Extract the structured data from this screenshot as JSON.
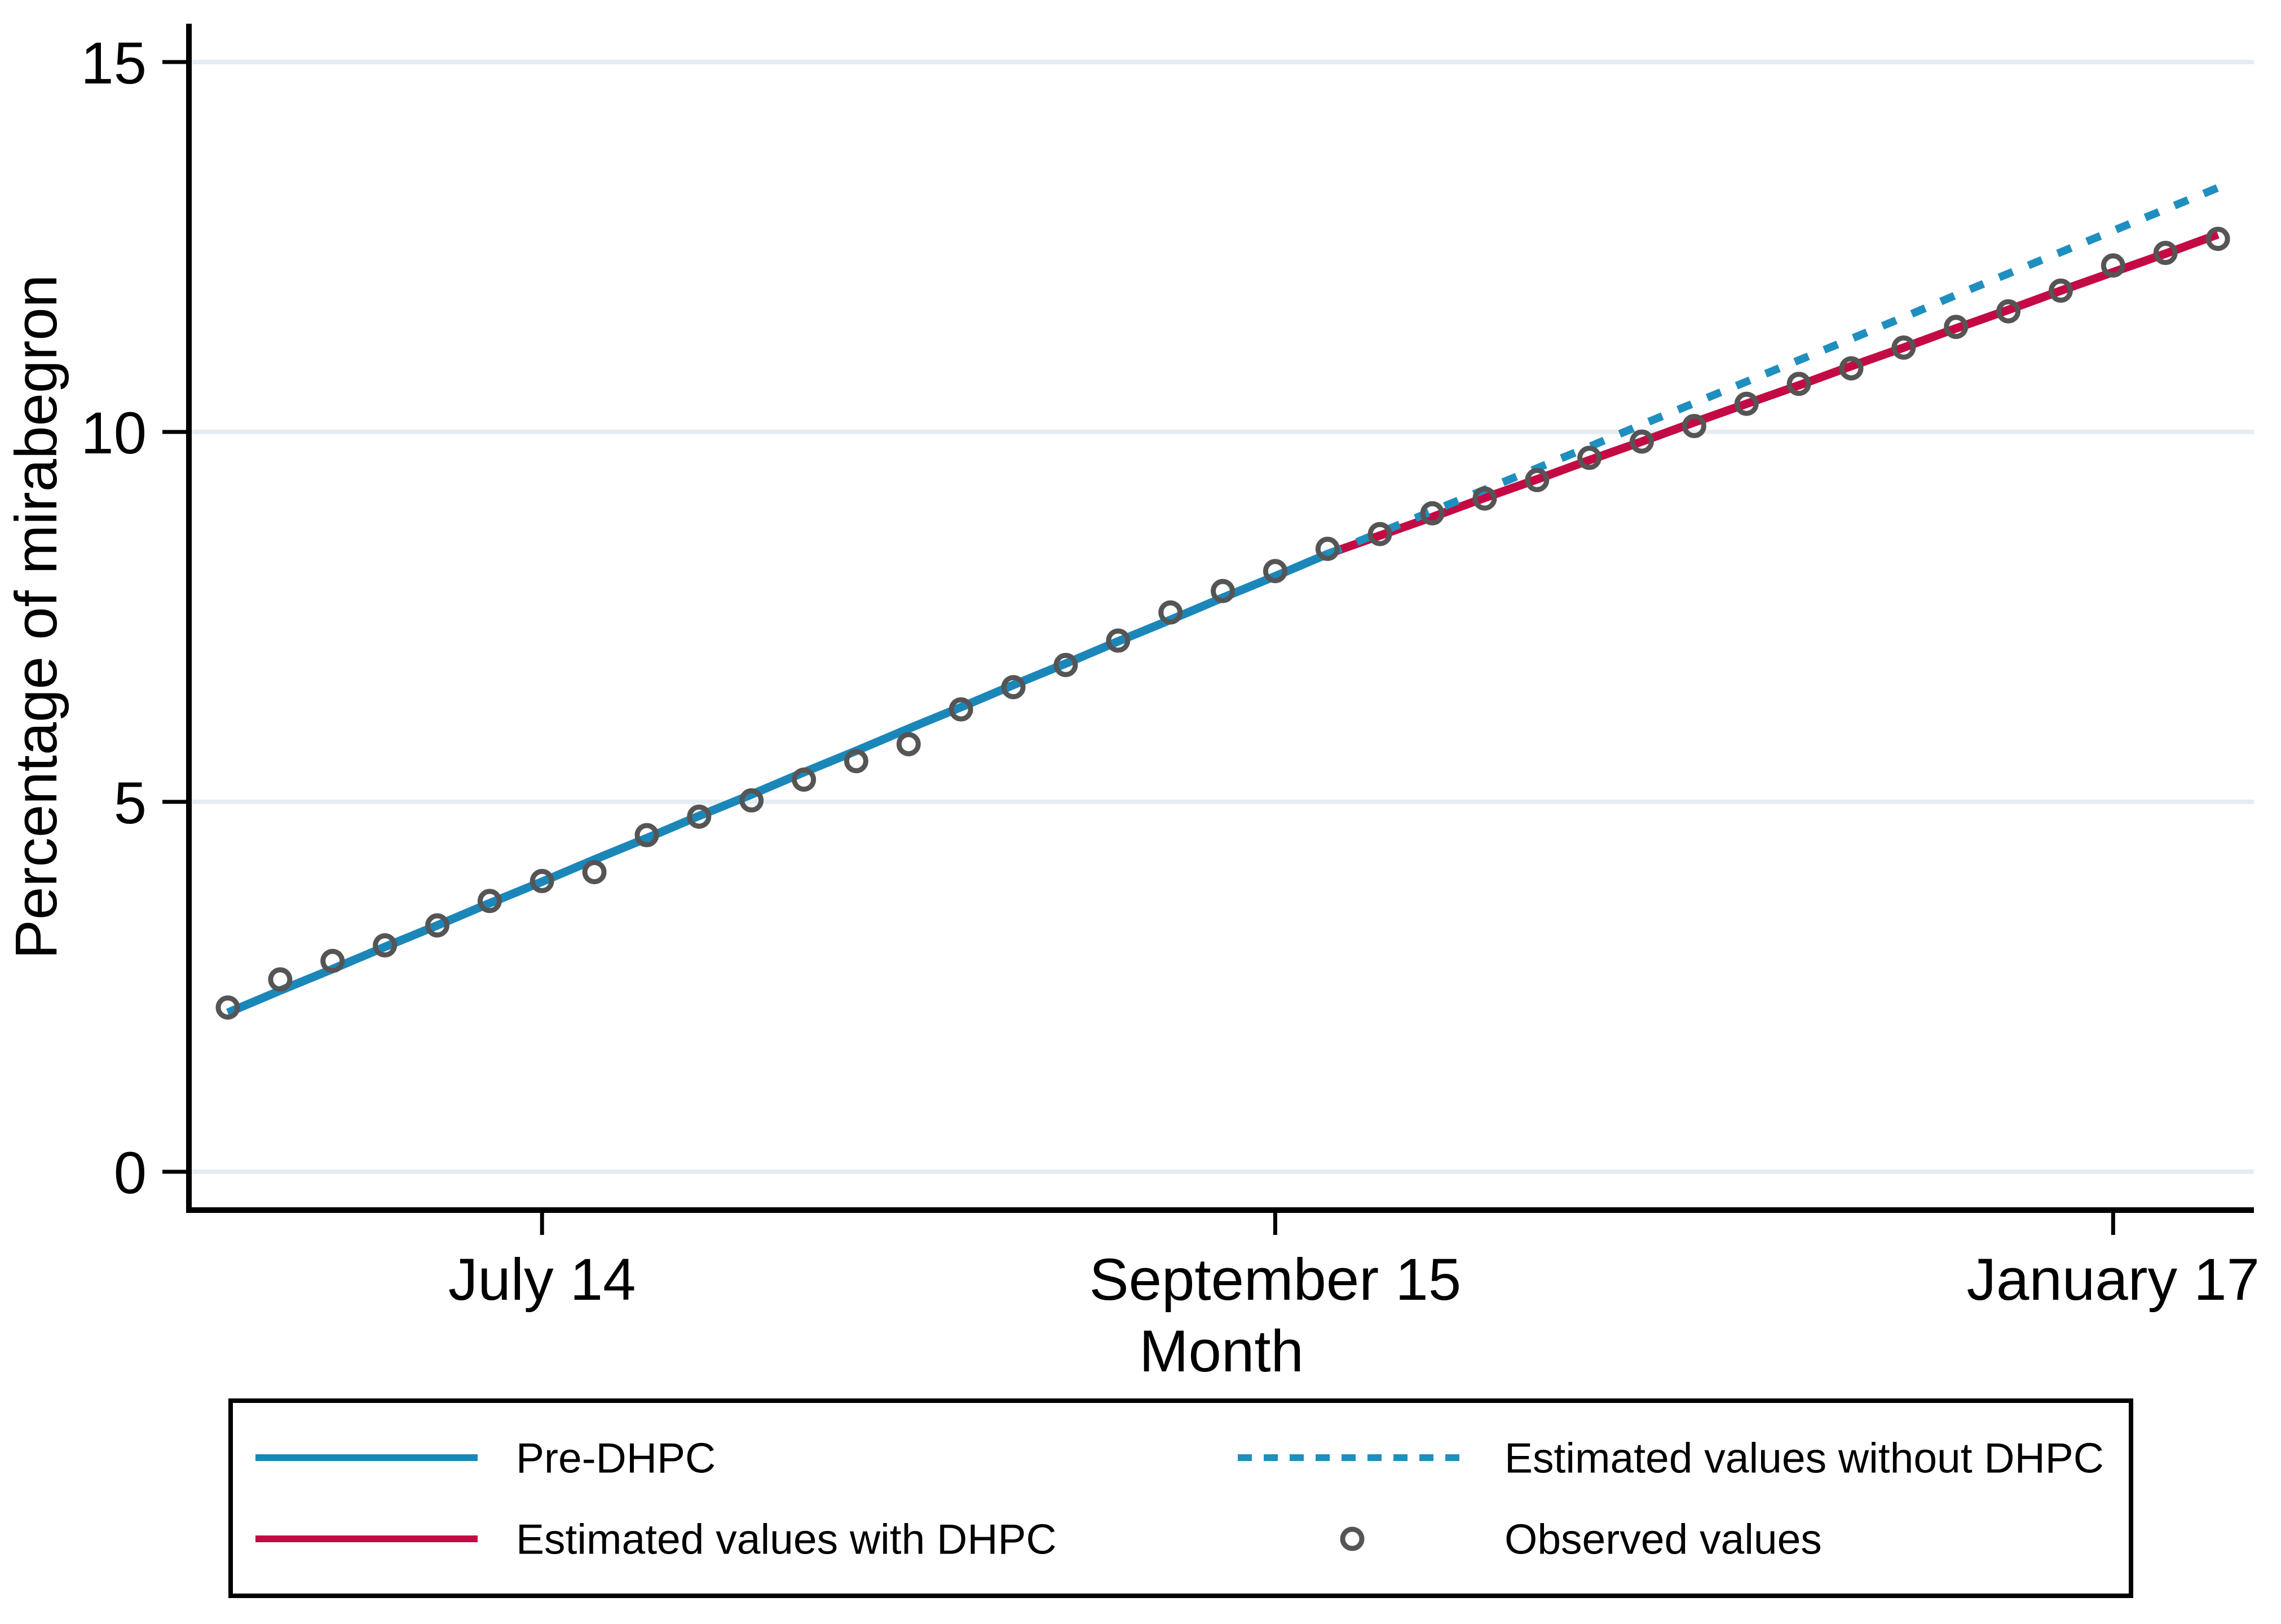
{
  "chart_data": {
    "type": "line",
    "title": "",
    "xlabel": "Month",
    "ylabel": "Percentage of mirabegron",
    "ylim": [
      -0.5,
      15.5
    ],
    "xlim_month_index": [
      -0.7,
      38.3
    ],
    "grid": "horizontal",
    "legend_position": "bottom",
    "yticks": [
      0,
      5,
      10,
      15
    ],
    "xticks": [
      {
        "index": 6,
        "label": "July 14"
      },
      {
        "index": 20,
        "label": "September 15"
      },
      {
        "index": 36,
        "label": "January 17"
      }
    ],
    "months": [
      "Jan 2014",
      "Feb 2014",
      "Mar 2014",
      "Apr 2014",
      "May 2014",
      "Jun 2014",
      "Jul 2014",
      "Aug 2014",
      "Sep 2014",
      "Oct 2014",
      "Nov 2014",
      "Dec 2014",
      "Jan 2015",
      "Feb 2015",
      "Mar 2015",
      "Apr 2015",
      "May 2015",
      "Jun 2015",
      "Jul 2015",
      "Aug 2015",
      "Sep 2015",
      "Oct 2015",
      "Nov 2015",
      "Dec 2015",
      "Jan 2016",
      "Feb 2016",
      "Mar 2016",
      "Apr 2016",
      "May 2016",
      "Jun 2016",
      "Jul 2016",
      "Aug 2016",
      "Sep 2016",
      "Oct 2016",
      "Nov 2016",
      "Dec 2016",
      "Jan 2017",
      "Feb 2017",
      "Mar 2017"
    ],
    "colors": {
      "pre": "#1b87b9",
      "with": "#c40a44",
      "without": "#1f8fbf",
      "observed": "#555555",
      "grid": "#e6edf2",
      "axis": "#000000"
    },
    "series": [
      {
        "id": "pre",
        "name": "Pre-DHPC",
        "type": "line",
        "style": "solid",
        "x_index_start": 0,
        "values": [
          2.15,
          2.45,
          2.74,
          3.04,
          3.33,
          3.63,
          3.92,
          4.22,
          4.51,
          4.81,
          5.1,
          5.4,
          5.69,
          5.99,
          6.28,
          6.58,
          6.87,
          7.17,
          7.46,
          7.76,
          8.05,
          8.35
        ]
      },
      {
        "id": "with",
        "name": "Estimated values with DHPC",
        "type": "line",
        "style": "solid",
        "x_index_start": 21,
        "values": [
          8.35,
          8.6,
          8.85,
          9.11,
          9.36,
          9.62,
          9.87,
          10.13,
          10.38,
          10.63,
          10.89,
          11.14,
          11.4,
          11.65,
          11.91,
          12.16,
          12.41,
          12.67
        ]
      },
      {
        "id": "without",
        "name": "Estimated values without DHPC",
        "type": "line",
        "style": "dashed",
        "x_index_start": 21,
        "values": [
          8.35,
          8.64,
          8.93,
          9.22,
          9.51,
          9.8,
          10.1,
          10.39,
          10.68,
          10.97,
          11.26,
          11.55,
          11.85,
          12.14,
          12.43,
          12.72,
          13.01,
          13.3
        ]
      },
      {
        "id": "observed",
        "name": "Observed values",
        "type": "scatter",
        "marker": "open-circle",
        "x_index_start": 0,
        "values": [
          2.22,
          2.6,
          2.85,
          3.06,
          3.33,
          3.66,
          3.93,
          4.05,
          4.55,
          4.8,
          5.02,
          5.3,
          5.55,
          5.78,
          6.25,
          6.55,
          6.85,
          7.18,
          7.56,
          7.85,
          8.12,
          8.42,
          8.62,
          8.9,
          9.1,
          9.35,
          9.65,
          9.87,
          10.08,
          10.38,
          10.65,
          10.86,
          11.14,
          11.42,
          11.63,
          11.91,
          12.25,
          12.42,
          12.61
        ]
      }
    ]
  },
  "legend": {
    "rows": [
      [
        {
          "swatch": "line-solid",
          "color_key": "pre",
          "label": "Pre-DHPC"
        },
        {
          "swatch": "line-dashed",
          "color_key": "without",
          "label": "Estimated values without DHPC"
        }
      ],
      [
        {
          "swatch": "line-solid",
          "color_key": "with",
          "label": "Estimated values with DHPC"
        },
        {
          "swatch": "marker-circle",
          "color_key": "observed",
          "label": "Observed values"
        }
      ]
    ]
  }
}
